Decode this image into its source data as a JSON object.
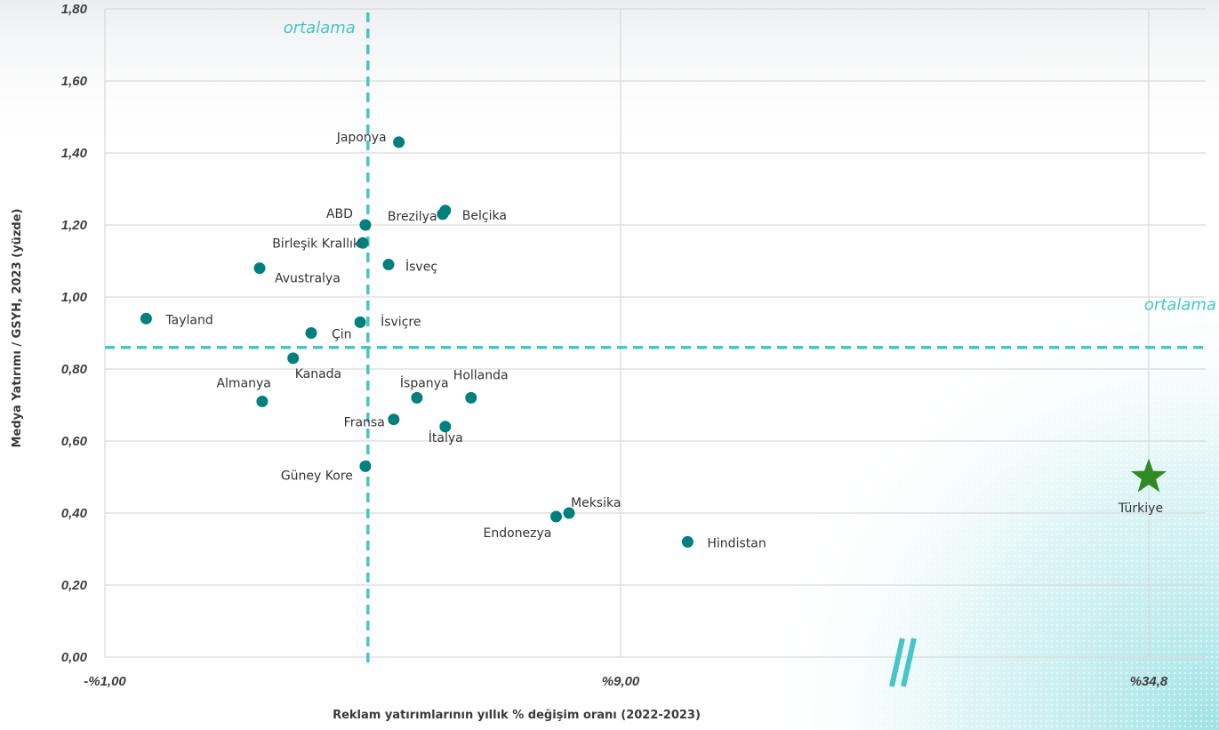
{
  "chart_data": {
    "type": "scatter",
    "title": "",
    "xlabel": "Reklam yatırımlarının yıllık % değişim oranı (2022-2023)",
    "ylabel": "Medya Yatırımı / GSYH, 2023 (yüzde)",
    "x_ticks": [
      "-%1,00",
      "%9,00",
      "%34,8"
    ],
    "x_tick_values": [
      -1.0,
      9.0,
      34.8
    ],
    "x_axis_break": true,
    "y_ticks": [
      "0,00",
      "0,20",
      "0,40",
      "0,60",
      "0,80",
      "1,00",
      "1,20",
      "1,40",
      "1,60",
      "1,80"
    ],
    "ylim": [
      0,
      1.8
    ],
    "grid": true,
    "average_lines": [
      {
        "orientation": "vertical",
        "label": "ortalama",
        "x": 4.1
      },
      {
        "orientation": "horizontal",
        "label": "ortalama",
        "y": 0.86
      }
    ],
    "points": [
      {
        "label": "Tayland",
        "x": -0.2,
        "y": 0.94
      },
      {
        "label": "Avustralya",
        "x": 2.0,
        "y": 1.08
      },
      {
        "label": "Almanya",
        "x": 2.05,
        "y": 0.71
      },
      {
        "label": "Kanada",
        "x": 2.65,
        "y": 0.83
      },
      {
        "label": "Çin",
        "x": 3.0,
        "y": 0.9
      },
      {
        "label": "İsviçre",
        "x": 3.95,
        "y": 0.93
      },
      {
        "label": "Birleşik Krallık",
        "x": 4.0,
        "y": 1.15
      },
      {
        "label": "ABD",
        "x": 4.05,
        "y": 1.2
      },
      {
        "label": "Güney Kore",
        "x": 4.05,
        "y": 0.53
      },
      {
        "label": "İsveç",
        "x": 4.5,
        "y": 1.09
      },
      {
        "label": "Fransa",
        "x": 4.6,
        "y": 0.66
      },
      {
        "label": "Japonya",
        "x": 4.7,
        "y": 1.43
      },
      {
        "label": "İspanya",
        "x": 5.05,
        "y": 0.72
      },
      {
        "label": "Brezilya",
        "x": 5.55,
        "y": 1.23
      },
      {
        "label": "Belçika",
        "x": 5.6,
        "y": 1.24
      },
      {
        "label": "İtalya",
        "x": 5.6,
        "y": 0.64
      },
      {
        "label": "Hollanda",
        "x": 6.1,
        "y": 0.72
      },
      {
        "label": "Endonezya",
        "x": 7.75,
        "y": 0.39
      },
      {
        "label": "Meksika",
        "x": 8.0,
        "y": 0.4
      },
      {
        "label": "Hindistan",
        "x": 10.3,
        "y": 0.32
      }
    ],
    "highlight": {
      "label": "Türkiye",
      "x": 34.8,
      "y": 0.5,
      "marker": "star",
      "color": "#2e8b22"
    },
    "colors": {
      "point": "#00807d",
      "average_line": "#46c6c6",
      "grid": "#d9d9d9",
      "break_mark": "#46c6c6"
    }
  }
}
